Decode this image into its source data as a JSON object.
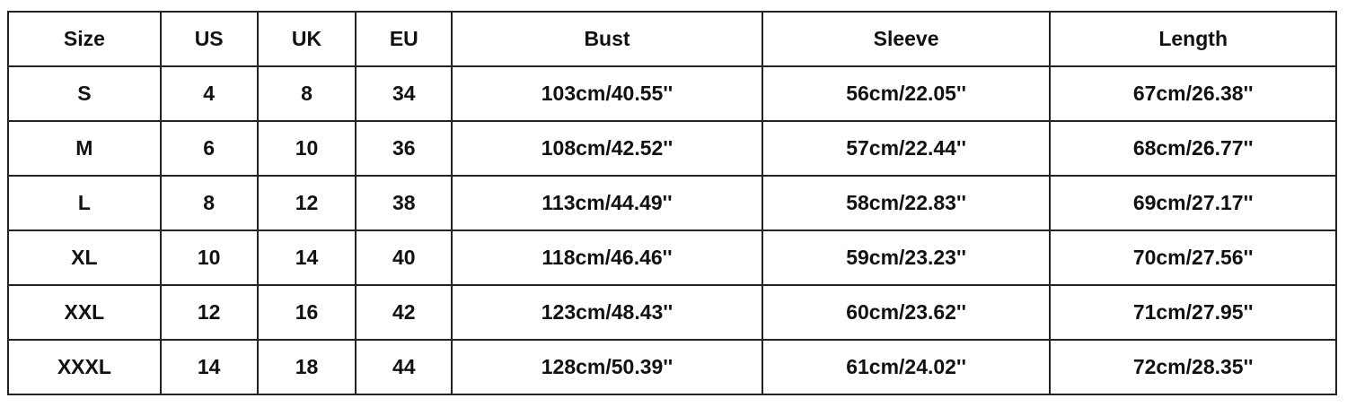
{
  "table": {
    "headers": [
      "Size",
      "US",
      "UK",
      "EU",
      "Bust",
      "Sleeve",
      "Length"
    ],
    "rows": [
      [
        "S",
        "4",
        "8",
        "34",
        "103cm/40.55''",
        "56cm/22.05''",
        "67cm/26.38''"
      ],
      [
        "M",
        "6",
        "10",
        "36",
        "108cm/42.52''",
        "57cm/22.44''",
        "68cm/26.77''"
      ],
      [
        "L",
        "8",
        "12",
        "38",
        "113cm/44.49''",
        "58cm/22.83''",
        "69cm/27.17''"
      ],
      [
        "XL",
        "10",
        "14",
        "40",
        "118cm/46.46''",
        "59cm/23.23''",
        "70cm/27.56''"
      ],
      [
        "XXL",
        "12",
        "16",
        "42",
        "123cm/48.43''",
        "60cm/23.62''",
        "71cm/27.95''"
      ],
      [
        "XXXL",
        "14",
        "18",
        "44",
        "128cm/50.39''",
        "61cm/24.02''",
        "72cm/28.35''"
      ]
    ]
  }
}
